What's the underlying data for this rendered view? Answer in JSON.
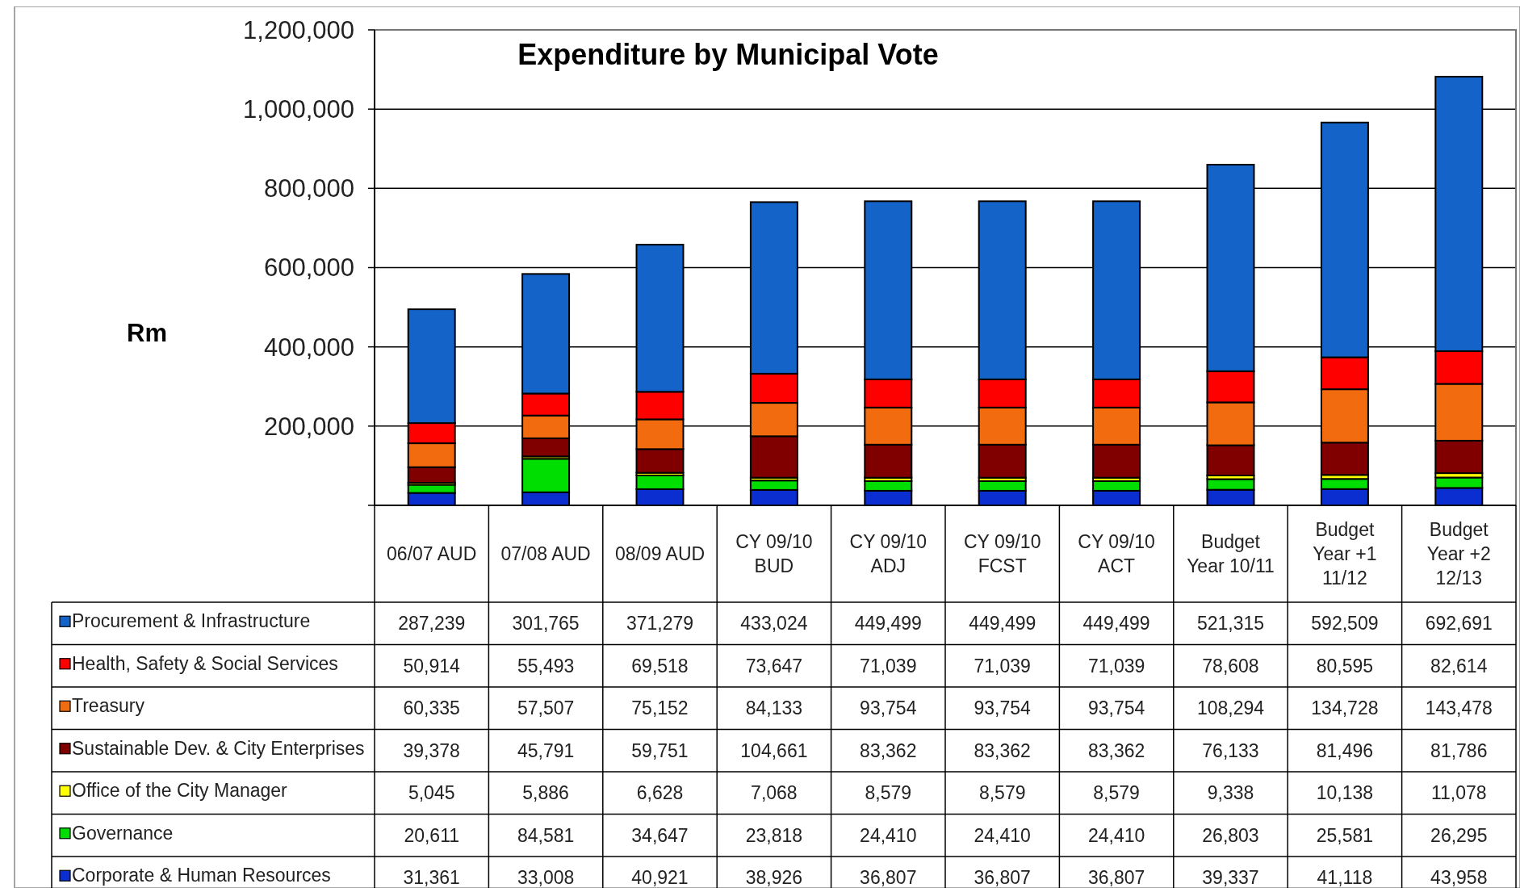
{
  "chart_data": {
    "type": "bar",
    "title": "Expenditure by Municipal Vote",
    "ylabel": "Rm",
    "stacked": true,
    "grid": "y",
    "legend": "bottom",
    "categories": [
      "06/07 AUD",
      "07/08 AUD",
      "08/09 AUD",
      "CY 09/10\nBUD",
      "CY  09/10\nADJ",
      "CY 09/10\nFCST",
      "CY 09/10\nACT",
      "Budget\nYear 10/11",
      "Budget\nYear +1\n11/12",
      "Budget\nYear +2\n12/13"
    ],
    "ylim": [
      0,
      1200000
    ],
    "yticks": [
      {
        "value": 0,
        "label": null
      },
      {
        "value": 200000,
        "label": "200,000"
      },
      {
        "value": 400000,
        "label": "400,000"
      },
      {
        "value": 600000,
        "label": "600,000"
      },
      {
        "value": 800000,
        "label": "800,000"
      },
      {
        "value": 1000000,
        "label": "1,000,000"
      },
      {
        "value": 1200000,
        "label": "1,200,000"
      }
    ],
    "series": [
      {
        "name": "Corporate & Human Resources",
        "color": "#0a2ed0",
        "values": [
          31361,
          33008,
          40921,
          38926,
          36807,
          36807,
          36807,
          39337,
          41118,
          43958
        ],
        "value_labels": [
          "31,361",
          "33,008",
          "40,921",
          "38,926",
          "36,807",
          "36,807",
          "36,807",
          "39,337",
          "41,118",
          "43,958"
        ]
      },
      {
        "name": "Governance",
        "color": "#00dd00",
        "values": [
          20611,
          84581,
          34647,
          23818,
          24410,
          24410,
          24410,
          26803,
          25581,
          26295
        ],
        "value_labels": [
          "20,611",
          "84,581",
          "34,647",
          "23,818",
          "24,410",
          "24,410",
          "24,410",
          "26,803",
          "25,581",
          "26,295"
        ]
      },
      {
        "name": "Office of the City Manager",
        "color": "#ffff00",
        "values": [
          5045,
          5886,
          6628,
          7068,
          8579,
          8579,
          8579,
          9338,
          10138,
          11078
        ],
        "value_labels": [
          "5,045",
          "5,886",
          "6,628",
          "7,068",
          "8,579",
          "8,579",
          "8,579",
          "9,338",
          "10,138",
          "11,078"
        ]
      },
      {
        "name": "Sustainable Dev. & City Enterprises",
        "color": "#800000",
        "values": [
          39378,
          45791,
          59751,
          104661,
          83362,
          83362,
          83362,
          76133,
          81496,
          81786
        ],
        "value_labels": [
          "39,378",
          "45,791",
          "59,751",
          "104,661",
          "83,362",
          "83,362",
          "83,362",
          "76,133",
          "81,496",
          "81,786"
        ]
      },
      {
        "name": "Treasury",
        "color": "#f26b0f",
        "values": [
          60335,
          57507,
          75152,
          84133,
          93754,
          93754,
          93754,
          108294,
          134728,
          143478
        ],
        "value_labels": [
          "60,335",
          "57,507",
          "75,152",
          "84,133",
          "93,754",
          "93,754",
          "93,754",
          "108,294",
          "134,728",
          "143,478"
        ]
      },
      {
        "name": "Health, Safety & Social Services",
        "color": "#ff0000",
        "values": [
          50914,
          55493,
          69518,
          73647,
          71039,
          71039,
          71039,
          78608,
          80595,
          82614
        ],
        "value_labels": [
          "50,914",
          "55,493",
          "69,518",
          "73,647",
          "71,039",
          "71,039",
          "71,039",
          "78,608",
          "80,595",
          "82,614"
        ]
      },
      {
        "name": "Procurement & Infrastructure",
        "color": "#1463c8",
        "values": [
          287239,
          301765,
          371279,
          433024,
          449499,
          449499,
          449499,
          521315,
          592509,
          692691
        ],
        "value_labels": [
          "287,239",
          "301,765",
          "371,279",
          "433,024",
          "449,499",
          "449,499",
          "449,499",
          "521,315",
          "592,509",
          "692,691"
        ]
      }
    ]
  }
}
